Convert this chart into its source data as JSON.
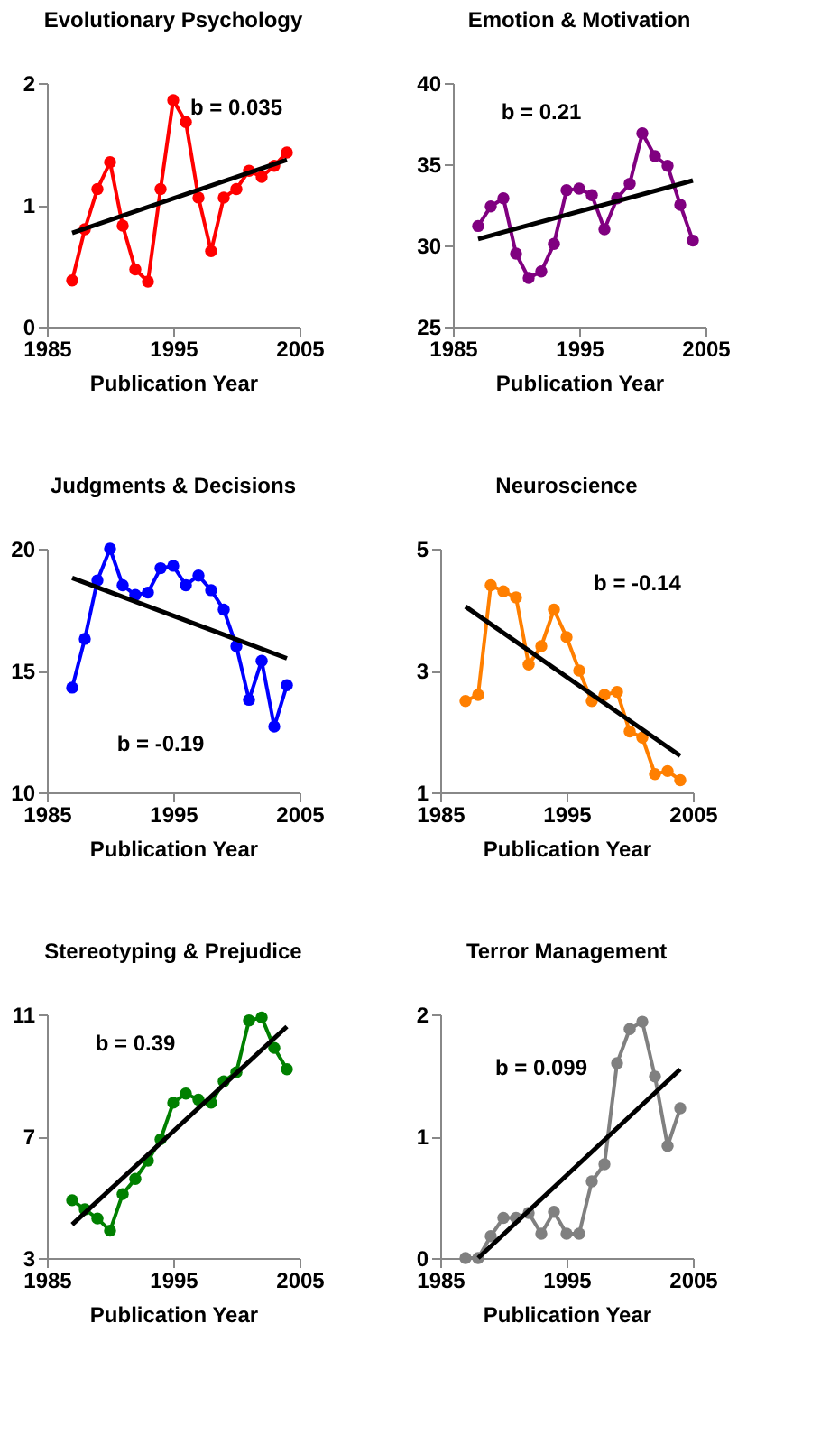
{
  "chart_data": [
    {
      "type": "line",
      "title": "Evolutionary Psychology",
      "xlabel": "Publication Year",
      "xlim": [
        1985,
        2005
      ],
      "xticks": [
        1985,
        1995,
        2005
      ],
      "ylim": [
        0,
        2
      ],
      "yticks": [
        0,
        1,
        2
      ],
      "grid": false,
      "marker": "circle",
      "line_style": "solid",
      "annotations": [
        "b = 0.035"
      ],
      "series": [
        {
          "color": "#ff0000",
          "x": [
            1987,
            1988,
            1989,
            1990,
            1991,
            1992,
            1993,
            1994,
            1995,
            1996,
            1997,
            1998,
            1999,
            2000,
            2001,
            2002,
            2003,
            2004
          ],
          "values": [
            0.38,
            0.8,
            1.13,
            1.35,
            0.83,
            0.47,
            0.37,
            1.13,
            1.86,
            1.68,
            1.06,
            0.62,
            1.06,
            1.13,
            1.28,
            1.23,
            1.32,
            1.43
          ]
        },
        {
          "type": "line",
          "color": "#000000",
          "marker": "none",
          "x": [
            1987,
            2004
          ],
          "values": [
            0.77,
            1.37
          ]
        }
      ]
    },
    {
      "type": "line",
      "title": "Emotion & Motivation",
      "xlabel": "Publication Year",
      "xlim": [
        1985,
        2005
      ],
      "xticks": [
        1985,
        1995,
        2005
      ],
      "ylim": [
        25,
        40
      ],
      "yticks": [
        25,
        30,
        35,
        40
      ],
      "grid": false,
      "marker": "circle",
      "line_style": "solid",
      "annotations": [
        "b = 0.21"
      ],
      "series": [
        {
          "color": "#800080",
          "x": [
            1987,
            1988,
            1989,
            1990,
            1991,
            1992,
            1993,
            1994,
            1995,
            1996,
            1997,
            1998,
            1999,
            2000,
            2001,
            2002,
            2003,
            2004
          ],
          "values": [
            31.2,
            32.4,
            32.9,
            29.5,
            28.0,
            28.4,
            30.1,
            33.4,
            33.5,
            33.1,
            31.0,
            32.9,
            33.8,
            36.9,
            35.5,
            34.9,
            32.5,
            30.3
          ]
        },
        {
          "type": "line",
          "color": "#000000",
          "marker": "none",
          "x": [
            1987,
            2004
          ],
          "values": [
            30.4,
            34.0
          ]
        }
      ]
    },
    {
      "type": "line",
      "title": "Judgments & Decisions",
      "xlabel": "Publication Year",
      "xlim": [
        1985,
        2005
      ],
      "xticks": [
        1985,
        1995,
        2005
      ],
      "ylim": [
        10,
        20
      ],
      "yticks": [
        10,
        15,
        20
      ],
      "grid": false,
      "marker": "circle",
      "line_style": "solid",
      "annotations": [
        "b = -0.19"
      ],
      "series": [
        {
          "color": "#0000ff",
          "x": [
            1987,
            1988,
            1989,
            1990,
            1991,
            1992,
            1993,
            1994,
            1995,
            1996,
            1997,
            1998,
            1999,
            2000,
            2001,
            2002,
            2003,
            2004
          ],
          "values": [
            14.3,
            16.3,
            18.7,
            20.0,
            18.5,
            18.1,
            18.2,
            19.2,
            19.3,
            18.5,
            18.9,
            18.3,
            17.5,
            16.0,
            13.8,
            15.4,
            12.7,
            14.4
          ]
        },
        {
          "type": "line",
          "color": "#000000",
          "marker": "none",
          "x": [
            1987,
            2004
          ],
          "values": [
            18.8,
            15.5
          ]
        }
      ]
    },
    {
      "type": "line",
      "title": "Neuroscience",
      "xlabel": "Publication Year",
      "xlim": [
        1985,
        2005
      ],
      "xticks": [
        1985,
        1995,
        2005
      ],
      "ylim": [
        1,
        5
      ],
      "yticks": [
        1,
        3,
        5
      ],
      "grid": false,
      "marker": "circle",
      "line_style": "solid",
      "annotations": [
        "b = -0.14"
      ],
      "series": [
        {
          "color": "#ff7f00",
          "x": [
            1987,
            1988,
            1989,
            1990,
            1991,
            1992,
            1993,
            1994,
            1995,
            1996,
            1997,
            1998,
            1999,
            2000,
            2001,
            2002,
            2003,
            2004
          ],
          "values": [
            2.5,
            2.6,
            4.4,
            4.3,
            4.2,
            3.1,
            3.4,
            4.0,
            3.55,
            3.0,
            2.5,
            2.6,
            2.65,
            2.0,
            1.9,
            1.3,
            1.35,
            1.2
          ]
        },
        {
          "type": "line",
          "color": "#000000",
          "marker": "none",
          "x": [
            1987,
            2004
          ],
          "values": [
            4.05,
            1.6
          ]
        }
      ]
    },
    {
      "type": "line",
      "title": "Stereotyping & Prejudice",
      "xlabel": "Publication Year",
      "xlim": [
        1985,
        2005
      ],
      "xticks": [
        1985,
        1995,
        2005
      ],
      "ylim": [
        3,
        11
      ],
      "yticks": [
        3,
        7,
        11
      ],
      "grid": false,
      "marker": "circle",
      "line_style": "solid",
      "annotations": [
        "b = 0.39"
      ],
      "series": [
        {
          "color": "#008000",
          "x": [
            1987,
            1988,
            1989,
            1990,
            1991,
            1992,
            1993,
            1994,
            1995,
            1996,
            1997,
            1998,
            1999,
            2000,
            2001,
            2002,
            2003,
            2004
          ],
          "values": [
            4.9,
            4.6,
            4.3,
            3.9,
            5.1,
            5.6,
            6.2,
            6.9,
            8.1,
            8.4,
            8.2,
            8.1,
            8.8,
            9.1,
            10.8,
            10.9,
            9.9,
            9.2
          ]
        },
        {
          "type": "line",
          "color": "#000000",
          "marker": "none",
          "x": [
            1987,
            2004
          ],
          "values": [
            4.1,
            10.6
          ]
        }
      ]
    },
    {
      "type": "line",
      "title": "Terror Management",
      "xlabel": "Publication Year",
      "xlim": [
        1985,
        2005
      ],
      "xticks": [
        1985,
        1995,
        2005
      ],
      "ylim": [
        0,
        2
      ],
      "yticks": [
        0,
        1,
        2
      ],
      "grid": false,
      "marker": "circle",
      "line_style": "solid",
      "annotations": [
        "b = 0.099"
      ],
      "series": [
        {
          "color": "#808080",
          "x": [
            1987,
            1988,
            1989,
            1990,
            1991,
            1992,
            1993,
            1994,
            1995,
            1996,
            1997,
            1998,
            1999,
            2000,
            2001,
            2002,
            2003,
            2004
          ],
          "values": [
            0,
            0,
            0.18,
            0.33,
            0.33,
            0.37,
            0.2,
            0.38,
            0.2,
            0.2,
            0.63,
            0.77,
            1.6,
            1.88,
            1.94,
            1.49,
            0.92,
            1.23
          ]
        },
        {
          "type": "line",
          "color": "#000000",
          "marker": "none",
          "x": [
            1988,
            2004
          ],
          "values": [
            0,
            1.55
          ]
        }
      ]
    }
  ]
}
